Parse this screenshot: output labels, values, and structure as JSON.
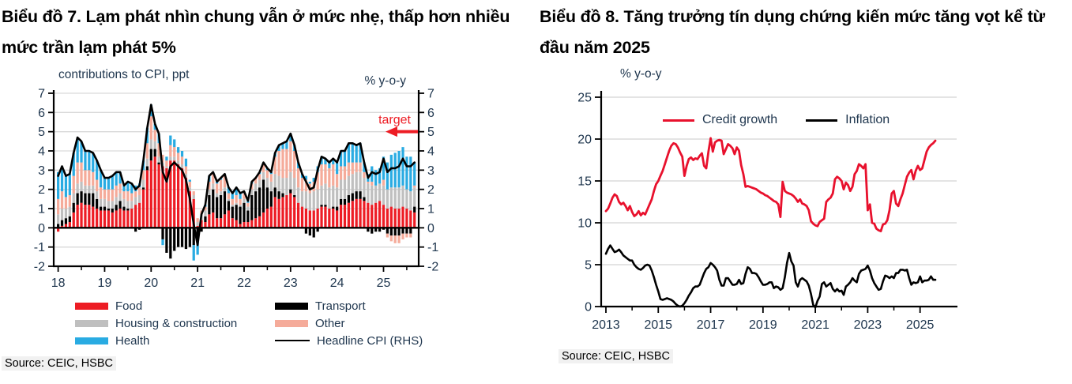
{
  "left_panel": {
    "title": "Biểu đồ 7. Lạm phát nhìn chung vẫn ở mức nhẹ, thấp hơn nhiều mức trần lạm phát 5%",
    "axis_note_left": "contributions to CPI, ppt",
    "axis_note_right": "% y-o-y",
    "source": "Source: CEIC, HSBC"
  },
  "right_panel": {
    "title": "Biểu đồ 8. Tăng trưởng tín dụng chứng kiến mức tăng vọt kể từ đầu năm 2025",
    "axis_note": "% y-o-y",
    "source": "Source: CEIC, HSBC"
  },
  "chart_data": [
    {
      "type": "bar",
      "subtype": "stacked-bars-with-line",
      "title": "CPI contributions, ppt (LHS) and Headline CPI % y-o-y (RHS)",
      "x_unit": "month",
      "x_start": "2018-01",
      "x_end": "2025-09",
      "x_tick_labels": [
        "18",
        "19",
        "20",
        "21",
        "22",
        "23",
        "24",
        "25"
      ],
      "ylim": [
        -2,
        7
      ],
      "y_ticks": [
        -2,
        -1,
        0,
        1,
        2,
        3,
        4,
        5,
        6,
        7
      ],
      "grid": true,
      "series": [
        {
          "name": "Food",
          "color": "#ed1c24",
          "values": [
            -0.2,
            0.1,
            0.2,
            0.3,
            0.8,
            1.2,
            1.3,
            1.2,
            1.2,
            1.1,
            1.0,
            0.9,
            0.9,
            0.9,
            0.8,
            0.9,
            1.0,
            0.9,
            0.9,
            1.0,
            1.2,
            1.3,
            2.0,
            3.0,
            3.5,
            3.7,
            3.3,
            3.2,
            3.1,
            3.5,
            3.5,
            3.3,
            3.1,
            2.6,
            1.9,
            1.5,
            0.1,
            0.4,
            0.3,
            0.7,
            0.8,
            0.5,
            0.5,
            0.7,
            0.9,
            0.5,
            0.4,
            0.2,
            0.3,
            0.3,
            0.4,
            0.5,
            0.6,
            0.8,
            1.0,
            1.1,
            1.6,
            1.5,
            1.6,
            1.7,
            1.8,
            1.6,
            1.3,
            1.1,
            1.0,
            0.9,
            0.9,
            1.0,
            1.1,
            1.1,
            1.0,
            1.0,
            0.9,
            1.2,
            1.2,
            1.3,
            1.4,
            1.5,
            1.5,
            1.4,
            1.3,
            1.2,
            1.3,
            1.4,
            1.2,
            1.0,
            1.1,
            1.0,
            1.0,
            1.1,
            1.0,
            0.9,
            0.8
          ]
        },
        {
          "name": "Transport",
          "color": "#000000",
          "values": [
            0.2,
            0.3,
            0.3,
            0.3,
            0.5,
            0.6,
            0.6,
            0.6,
            0.6,
            0.7,
            0.5,
            0.2,
            0.2,
            0.1,
            0.2,
            0.3,
            0.4,
            0.2,
            0.1,
            0.0,
            -0.2,
            -0.1,
            0.1,
            0.2,
            0.6,
            0.4,
            0.1,
            -0.6,
            -1.3,
            -1.6,
            -1.2,
            -1.0,
            -1.0,
            -1.1,
            -1.0,
            -0.9,
            -0.7,
            -0.2,
            0.3,
            1.0,
            1.2,
            1.1,
            1.2,
            1.2,
            0.5,
            0.6,
            0.8,
            0.9,
            1.0,
            0.6,
            1.3,
            1.4,
            1.5,
            1.7,
            1.1,
            0.8,
            0.5,
            0.4,
            0.2,
            0.0,
            0.2,
            0.1,
            0.0,
            0.0,
            -0.3,
            -0.4,
            -0.5,
            -0.2,
            0.1,
            0.1,
            0.0,
            0.1,
            0.2,
            0.3,
            0.3,
            0.4,
            0.4,
            0.4,
            0.4,
            0.2,
            -0.2,
            -0.3,
            -0.2,
            -0.2,
            -0.1,
            -0.3,
            -0.4,
            -0.4,
            -0.4,
            -0.3,
            -0.3,
            -0.3,
            0.3
          ]
        },
        {
          "name": "Housing & construction",
          "color": "#bfbfbf",
          "values": [
            0.5,
            0.6,
            0.5,
            0.5,
            0.5,
            0.5,
            0.5,
            0.4,
            0.4,
            0.4,
            0.4,
            0.4,
            0.4,
            0.4,
            0.4,
            0.4,
            0.4,
            0.4,
            0.4,
            0.4,
            0.4,
            0.4,
            0.4,
            0.4,
            0.5,
            0.4,
            0.3,
            0.2,
            0.1,
            0.2,
            0.2,
            0.2,
            0.2,
            0.2,
            0.2,
            0.2,
            0.2,
            0.3,
            0.3,
            0.3,
            0.3,
            0.2,
            0.2,
            0.2,
            0.1,
            0.1,
            0.1,
            0.1,
            0.2,
            0.2,
            0.3,
            0.4,
            0.4,
            0.4,
            0.5,
            0.5,
            0.7,
            0.8,
            0.8,
            0.9,
            0.9,
            0.9,
            0.8,
            0.8,
            0.9,
            0.9,
            1.0,
            1.0,
            1.0,
            1.1,
            1.1,
            1.1,
            1.0,
            1.0,
            1.0,
            1.0,
            1.0,
            1.0,
            1.0,
            1.0,
            1.0,
            1.0,
            0.9,
            0.9,
            1.0,
            1.0,
            1.0,
            1.1,
            1.1,
            1.1,
            1.0,
            1.0,
            1.0
          ]
        },
        {
          "name": "Other",
          "color": "#f5ab9a",
          "values": [
            0.8,
            0.9,
            0.6,
            0.6,
            0.9,
            1.1,
            1.0,
            0.8,
            0.8,
            0.7,
            0.6,
            0.6,
            0.5,
            0.6,
            0.6,
            0.6,
            0.5,
            0.4,
            0.5,
            0.4,
            0.3,
            0.4,
            0.5,
            0.8,
            1.2,
            0.6,
            0.7,
            0.4,
            0.3,
            0.6,
            0.5,
            0.4,
            0.4,
            0.4,
            0.3,
            0.2,
            0.2,
            0.2,
            0.2,
            0.4,
            0.5,
            0.5,
            0.6,
            0.6,
            0.3,
            0.3,
            0.4,
            0.3,
            0.3,
            0.2,
            0.3,
            0.3,
            0.3,
            0.4,
            0.4,
            0.4,
            0.9,
            1.3,
            1.5,
            1.5,
            1.6,
            1.4,
            1.0,
            0.7,
            0.6,
            0.5,
            0.5,
            0.9,
            1.1,
            1.0,
            1.0,
            1.1,
            0.7,
            0.7,
            0.7,
            0.7,
            0.6,
            0.5,
            0.5,
            0.3,
            0.1,
            0.2,
            0.0,
            0.0,
            0.3,
            -0.2,
            -0.3,
            -0.4,
            -0.4,
            -0.3,
            -0.2,
            -0.2,
            0.1
          ]
        },
        {
          "name": "Health",
          "color": "#29abe2",
          "values": [
            1.4,
            1.3,
            1.1,
            1.1,
            1.2,
            1.3,
            1.1,
            1.0,
            1.0,
            1.0,
            1.0,
            0.9,
            0.6,
            0.6,
            0.7,
            0.7,
            0.6,
            0.3,
            0.5,
            0.5,
            0.3,
            0.2,
            0.5,
            0.8,
            0.6,
            0.3,
            0.5,
            -0.3,
            0.2,
            0.5,
            0.4,
            0.3,
            0.3,
            0.4,
            0.1,
            -0.8,
            -0.7,
            0.0,
            0.1,
            0.3,
            0.1,
            0.1,
            0.1,
            0.1,
            0.3,
            0.3,
            0.4,
            0.3,
            0.1,
            0.1,
            0.1,
            0.0,
            0.1,
            0.1,
            0.1,
            0.1,
            0.2,
            0.3,
            0.3,
            0.4,
            0.4,
            0.3,
            0.3,
            0.2,
            0.2,
            0.1,
            0.2,
            0.3,
            0.4,
            0.3,
            0.3,
            0.3,
            0.6,
            0.8,
            0.8,
            1.0,
            1.0,
            0.9,
            1.0,
            0.5,
            0.4,
            0.8,
            0.8,
            0.8,
            1.2,
            1.4,
            1.7,
            1.8,
            1.9,
            2.0,
            1.7,
            1.8,
            1.2
          ]
        }
      ],
      "line_series": {
        "name": "Headline CPI (RHS)",
        "color": "#000000",
        "values": [
          2.7,
          3.2,
          2.7,
          2.8,
          3.9,
          4.7,
          4.5,
          4.0,
          4.0,
          3.9,
          3.5,
          3.0,
          2.6,
          2.6,
          2.7,
          2.9,
          2.9,
          2.2,
          2.4,
          2.3,
          2.0,
          2.2,
          3.5,
          5.2,
          6.4,
          5.4,
          4.9,
          2.9,
          2.4,
          3.2,
          3.4,
          3.2,
          3.0,
          2.5,
          1.5,
          0.2,
          -0.9,
          0.7,
          1.2,
          2.7,
          2.9,
          2.4,
          2.6,
          2.8,
          2.1,
          1.8,
          2.1,
          1.8,
          1.9,
          1.4,
          2.4,
          2.6,
          2.9,
          3.4,
          3.1,
          2.9,
          3.9,
          4.3,
          4.4,
          4.5,
          4.9,
          4.3,
          3.4,
          2.8,
          2.4,
          2.0,
          2.1,
          3.0,
          3.7,
          3.6,
          3.4,
          3.6,
          3.4,
          4.0,
          4.0,
          4.4,
          4.4,
          4.3,
          4.4,
          3.4,
          2.6,
          2.9,
          2.8,
          2.9,
          3.6,
          2.9,
          3.1,
          3.1,
          3.2,
          3.6,
          3.2,
          3.2,
          3.4
        ]
      },
      "annotations": [
        {
          "type": "arrow-left",
          "label": "target",
          "value": 5,
          "color": "#ed1c24"
        }
      ]
    },
    {
      "type": "line",
      "x_unit": "month",
      "x_start": "2013-01",
      "x_end": "2025-08",
      "x_tick_labels": [
        "2013",
        "2015",
        "2017",
        "2019",
        "2021",
        "2023",
        "2025"
      ],
      "ylim": [
        0,
        25
      ],
      "y_ticks": [
        0,
        5,
        10,
        15,
        20,
        25
      ],
      "grid": true,
      "legend_position": "top",
      "series": [
        {
          "name": "Credit growth",
          "color": "#e8112d",
          "values": [
            11.4,
            11.7,
            12.3,
            13.0,
            13.4,
            13.2,
            12.5,
            12.2,
            12.4,
            12.0,
            11.5,
            12.0,
            11.3,
            10.8,
            11.0,
            11.4,
            10.9,
            11.2,
            11.0,
            11.6,
            12.2,
            12.8,
            13.8,
            14.6,
            15.0,
            15.6,
            16.2,
            17.0,
            17.8,
            18.6,
            19.2,
            19.5,
            19.4,
            19.0,
            18.4,
            17.9,
            15.6,
            16.8,
            17.6,
            17.8,
            17.5,
            17.7,
            17.6,
            18.0,
            18.3,
            16.8,
            16.5,
            18.5,
            20.1,
            18.5,
            19.6,
            19.8,
            19.9,
            19.8,
            18.2,
            18.8,
            19.4,
            19.2,
            18.9,
            18.2,
            19.0,
            18.6,
            16.9,
            15.8,
            14.3,
            14.4,
            14.3,
            14.2,
            14.1,
            14.0,
            13.8,
            13.6,
            13.5,
            13.3,
            13.2,
            13.0,
            12.8,
            12.6,
            12.5,
            12.2,
            10.7,
            14.9,
            13.8,
            13.6,
            13.5,
            13.4,
            13.2,
            12.9,
            12.5,
            12.8,
            12.3,
            12.2,
            12.0,
            11.5,
            10.2,
            9.9,
            9.7,
            9.6,
            10.1,
            10.3,
            10.5,
            12.5,
            12.8,
            13.0,
            13.5,
            15.2,
            15.5,
            15.3,
            15.0,
            14.0,
            14.8,
            14.5,
            13.8,
            14.3,
            15.8,
            16.2,
            17.0,
            16.8,
            16.5,
            17.0,
            11.5,
            12.2,
            10.0,
            9.9,
            9.3,
            9.1,
            9.0,
            9.8,
            9.9,
            10.3,
            11.5,
            13.5,
            13.8,
            12.3,
            12.0,
            12.8,
            13.5,
            14.5,
            15.5,
            16.0,
            16.3,
            15.2,
            16.2,
            16.8,
            16.3,
            16.5,
            17.5,
            18.5,
            19.0,
            19.3,
            19.5,
            19.8
          ]
        },
        {
          "name": "Inflation",
          "color": "#000000",
          "values": [
            6.3,
            6.9,
            7.3,
            6.9,
            6.5,
            6.6,
            6.8,
            6.5,
            6.1,
            5.9,
            5.7,
            5.5,
            5.5,
            5.0,
            4.7,
            4.5,
            4.4,
            4.6,
            4.9,
            5.0,
            4.9,
            4.3,
            3.5,
            2.6,
            1.8,
            0.9,
            0.8,
            0.9,
            1.0,
            0.9,
            0.8,
            0.6,
            0.3,
            0.1,
            0.0,
            0.1,
            0.4,
            0.8,
            1.3,
            1.7,
            2.2,
            2.4,
            2.4,
            2.6,
            3.3,
            4.0,
            4.5,
            4.7,
            5.2,
            5.0,
            4.7,
            4.3,
            3.2,
            2.5,
            2.5,
            3.4,
            3.4,
            3.0,
            2.6,
            2.6,
            2.7,
            3.2,
            2.7,
            2.8,
            3.9,
            4.7,
            4.5,
            4.0,
            4.0,
            3.9,
            3.5,
            3.0,
            2.6,
            2.6,
            2.7,
            2.9,
            2.9,
            2.2,
            2.4,
            2.3,
            2.0,
            2.2,
            3.5,
            5.2,
            6.4,
            5.4,
            4.9,
            2.9,
            2.4,
            3.2,
            3.4,
            3.2,
            3.0,
            2.5,
            1.5,
            0.2,
            -0.9,
            0.7,
            1.2,
            2.7,
            2.9,
            2.4,
            2.6,
            2.8,
            2.1,
            1.8,
            2.1,
            1.8,
            1.9,
            1.4,
            2.4,
            2.6,
            2.9,
            3.4,
            3.1,
            2.9,
            3.9,
            4.3,
            4.4,
            4.5,
            4.9,
            4.3,
            3.4,
            2.8,
            2.4,
            2.0,
            2.1,
            3.0,
            3.7,
            3.6,
            3.4,
            3.6,
            3.4,
            4.0,
            4.0,
            4.4,
            4.4,
            4.3,
            4.4,
            3.4,
            2.6,
            2.9,
            2.8,
            2.9,
            3.6,
            2.9,
            3.1,
            3.1,
            3.2,
            3.6,
            3.2,
            3.2
          ]
        }
      ]
    }
  ]
}
